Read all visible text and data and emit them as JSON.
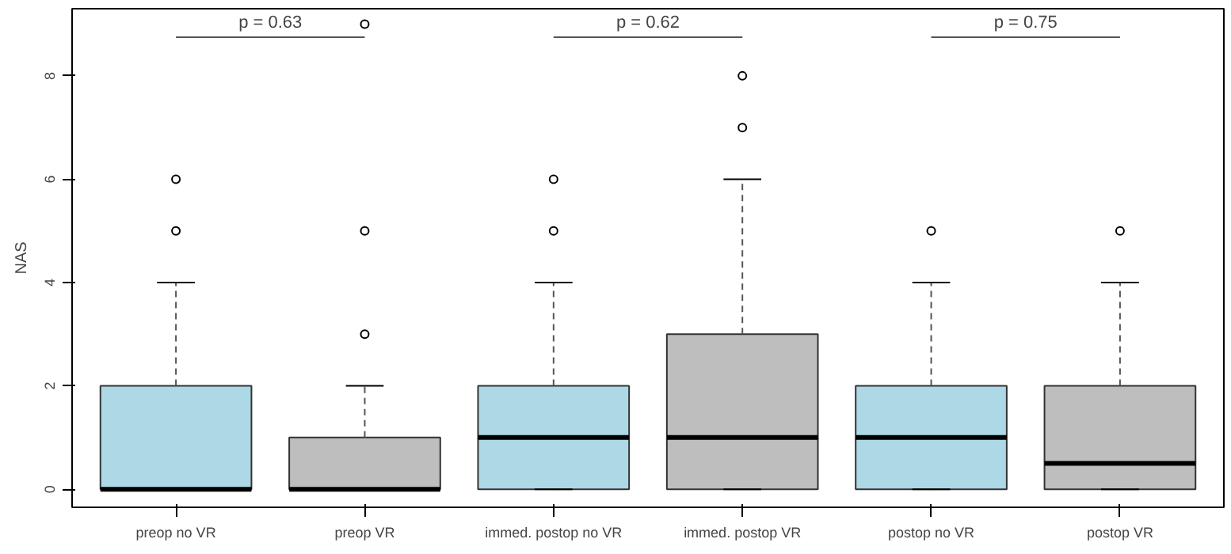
{
  "chart_data": {
    "type": "box",
    "ylabel": "NAS",
    "categories": [
      "preop no VR",
      "preop VR",
      "immed. postop no VR",
      "immed. postop VR",
      "postop no VR",
      "postop VR"
    ],
    "colors": [
      "#add8e6",
      "#bebebe",
      "#add8e6",
      "#bebebe",
      "#add8e6",
      "#bebebe"
    ],
    "boxes": [
      {
        "low": 0,
        "q1": 0,
        "median": 0,
        "q3": 2,
        "high": 4,
        "outliers": [
          5,
          6
        ]
      },
      {
        "low": 0,
        "q1": 0,
        "median": 0,
        "q3": 1,
        "high": 2,
        "outliers": [
          3,
          5,
          9
        ]
      },
      {
        "low": 0,
        "q1": 0,
        "median": 1,
        "q3": 2,
        "high": 4,
        "outliers": [
          5,
          6
        ]
      },
      {
        "low": 0,
        "q1": 0,
        "median": 1,
        "q3": 3,
        "high": 6,
        "outliers": [
          7,
          8
        ]
      },
      {
        "low": 0,
        "q1": 0,
        "median": 1,
        "q3": 2,
        "high": 4,
        "outliers": [
          5
        ]
      },
      {
        "low": 0,
        "q1": 0,
        "median": 0.5,
        "q3": 2,
        "high": 4,
        "outliers": [
          5
        ]
      }
    ],
    "ylim": [
      -0.35,
      9.3
    ],
    "yticks": [
      0,
      2,
      4,
      6,
      8
    ],
    "grid": false,
    "annotations": [
      "p = 0.63",
      "p = 0.62",
      "p = 0.75"
    ]
  }
}
